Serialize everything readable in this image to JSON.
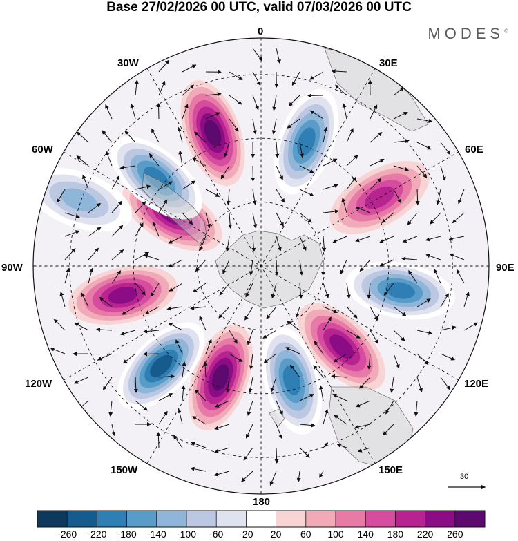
{
  "title": "Base 27/02/2026 00 UTC, valid 07/03/2026 00 UTC",
  "brand": "MODES",
  "brand_mark": "©",
  "longitude_labels": {
    "top": "0",
    "ne": "30E",
    "e60": "60E",
    "east": "90E",
    "e120": "120E",
    "e150": "150E",
    "bottom": "180",
    "w150": "150W",
    "w120": "120W",
    "west": "90W",
    "w60": "60W",
    "nw": "30W"
  },
  "vector_reference": "30",
  "colorbar": {
    "colors": [
      "#0d3a5c",
      "#155c8c",
      "#2f7fb4",
      "#5a9cc8",
      "#8fb6d8",
      "#bcc8e2",
      "#e0e2ef",
      "#ffffff",
      "#f8d4d4",
      "#f0aab8",
      "#e77aa6",
      "#d64da0",
      "#b8248f",
      "#8c0c85",
      "#5c0a6e"
    ],
    "ticks": [
      "-260",
      "-220",
      "-180",
      "-140",
      "-100",
      "-60",
      "-20",
      "20",
      "60",
      "100",
      "140",
      "180",
      "220",
      "260"
    ]
  },
  "anomalies": [
    {
      "lon": 340,
      "dist": 0.62,
      "value": 240
    },
    {
      "lon": 20,
      "dist": 0.58,
      "value": -220
    },
    {
      "lon": 60,
      "dist": 0.6,
      "value": 150
    },
    {
      "lon": 100,
      "dist": 0.62,
      "value": -200
    },
    {
      "lon": 135,
      "dist": 0.5,
      "value": 210
    },
    {
      "lon": 165,
      "dist": 0.52,
      "value": -220
    },
    {
      "lon": 200,
      "dist": 0.52,
      "value": 240
    },
    {
      "lon": 225,
      "dist": 0.62,
      "value": -250
    },
    {
      "lon": 258,
      "dist": 0.62,
      "value": 200
    },
    {
      "lon": 300,
      "dist": 0.45,
      "value": 220
    },
    {
      "lon": 310,
      "dist": 0.6,
      "value": -200
    },
    {
      "lon": 290,
      "dist": 0.85,
      "value": -120
    }
  ]
}
